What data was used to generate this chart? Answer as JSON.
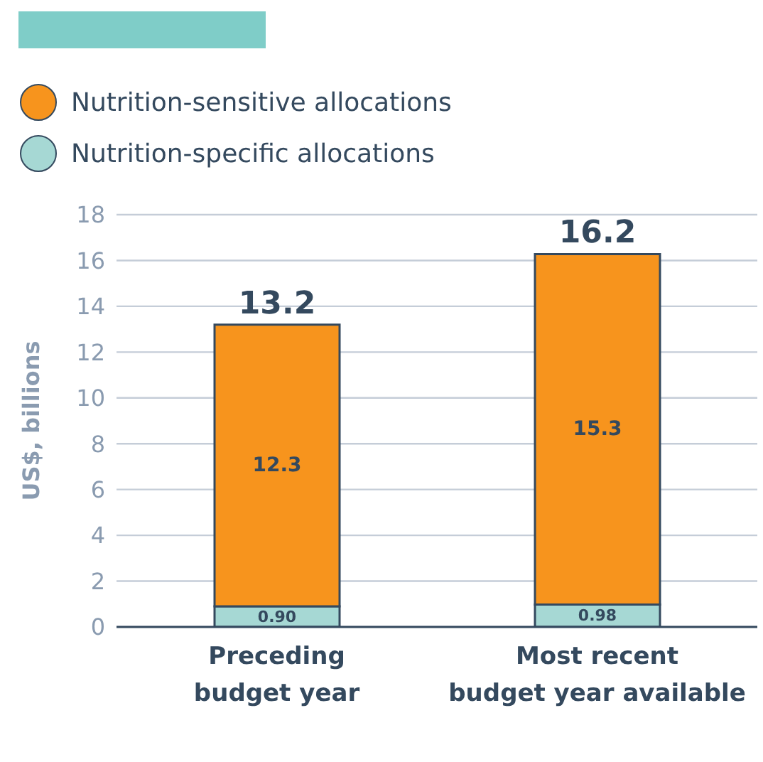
{
  "chart_data": {
    "type": "bar",
    "stacked": true,
    "ylabel": "US$, billions",
    "categories": [
      "Preceding\nbudget year",
      "Most recent\nbudget year available"
    ],
    "series": [
      {
        "name": "Nutrition-specific allocations",
        "color": "#a6d8d4",
        "values": [
          0.9,
          0.98
        ],
        "value_labels": [
          "0.90",
          "0.98"
        ]
      },
      {
        "name": "Nutrition-sensitive allocations",
        "color": "#f7941d",
        "values": [
          12.3,
          15.3
        ],
        "value_labels": [
          "12.3",
          "15.3"
        ]
      }
    ],
    "totals": [
      "13.2",
      "16.2"
    ],
    "ylim": [
      0,
      18
    ],
    "yticks": [
      0,
      2,
      4,
      6,
      8,
      10,
      12,
      14,
      16,
      18
    ],
    "grid": "y",
    "legend": "top left"
  }
}
